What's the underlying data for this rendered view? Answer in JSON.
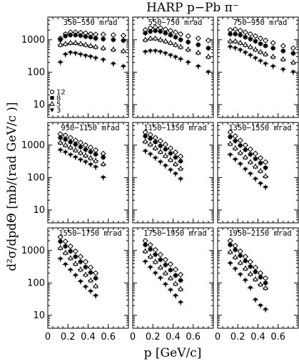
{
  "chart_data": {
    "type": "scatter",
    "title": "HARP p−Pb π⁻",
    "xlabel": "p [GeV/c]",
    "ylabel": "d²σ/dpdΘ [mb/(rad GeV/c )]",
    "xlim": [
      0,
      0.8
    ],
    "ylim": [
      4,
      5000
    ],
    "yscale": "log",
    "x_tick_labels": [
      "0",
      "0.2",
      "0.4",
      "0.6"
    ],
    "y_tick_labels": [
      "10",
      "100",
      "1000"
    ],
    "grid": "off",
    "legend": {
      "location": "lower-left of first panel",
      "entries": [
        {
          "label": "12",
          "marker": "open-circle"
        },
        {
          "label": "8",
          "marker": "filled-square"
        },
        {
          "label": "5",
          "marker": "open-triangle"
        },
        {
          "label": "3",
          "marker": "filled-triangle-down"
        }
      ]
    },
    "series_markers": {
      "12": "open-circle",
      "8": "filled-square",
      "5": "open-triangle",
      "3": "filled-triangle-down"
    },
    "panels": [
      {
        "label": "350−550 mrad",
        "series": [
          {
            "name": "12",
            "x": [
              0.125,
              0.175,
              0.225,
              0.275,
              0.325,
              0.375,
              0.425,
              0.475,
              0.55,
              0.65,
              0.75
            ],
            "y": [
              1100,
              1500,
              1700,
              1700,
              1650,
              1600,
              1500,
              1450,
              1450,
              1400,
              1350
            ]
          },
          {
            "name": "8",
            "x": [
              0.125,
              0.175,
              0.225,
              0.275,
              0.325,
              0.375,
              0.425,
              0.475,
              0.55,
              0.65,
              0.75
            ],
            "y": [
              1000,
              1300,
              1400,
              1400,
              1350,
              1250,
              1200,
              1100,
              1050,
              1000,
              950
            ]
          },
          {
            "name": "5",
            "x": [
              0.125,
              0.175,
              0.225,
              0.275,
              0.325,
              0.375,
              0.425,
              0.475,
              0.55,
              0.65,
              0.75
            ],
            "y": [
              700,
              750,
              800,
              800,
              750,
              700,
              650,
              600,
              550,
              500,
              450
            ]
          },
          {
            "name": "3",
            "x": [
              0.125,
              0.175,
              0.225,
              0.275,
              0.325,
              0.375,
              0.425,
              0.475,
              0.55,
              0.65,
              0.75
            ],
            "y": [
              200,
              350,
              400,
              380,
              350,
              320,
              300,
              270,
              240,
              180,
              150
            ]
          }
        ]
      },
      {
        "label": "550−750 mrad",
        "series": [
          {
            "name": "12",
            "x": [
              0.125,
              0.175,
              0.225,
              0.275,
              0.325,
              0.375,
              0.425,
              0.475,
              0.55,
              0.65,
              0.75
            ],
            "y": [
              2000,
              2300,
              2400,
              2300,
              2100,
              1900,
              1700,
              1500,
              1300,
              1100,
              950
            ]
          },
          {
            "name": "8",
            "x": [
              0.125,
              0.175,
              0.225,
              0.275,
              0.325,
              0.375,
              0.425,
              0.475,
              0.55,
              0.65,
              0.75
            ],
            "y": [
              1600,
              1800,
              1900,
              1800,
              1600,
              1400,
              1200,
              1000,
              850,
              700,
              550
            ]
          },
          {
            "name": "5",
            "x": [
              0.125,
              0.175,
              0.225,
              0.275,
              0.325,
              0.375,
              0.425,
              0.475,
              0.55,
              0.65,
              0.75
            ],
            "y": [
              1000,
              1100,
              1100,
              1000,
              900,
              800,
              700,
              600,
              500,
              400,
              300
            ]
          },
          {
            "name": "3",
            "x": [
              0.125,
              0.175,
              0.225,
              0.275,
              0.325,
              0.375,
              0.425,
              0.475,
              0.55,
              0.65,
              0.75
            ],
            "y": [
              420,
              450,
              450,
              420,
              380,
              330,
              290,
              250,
              200,
              150,
              100
            ]
          }
        ]
      },
      {
        "label": "750−950 mrad",
        "series": [
          {
            "name": "12",
            "x": [
              0.125,
              0.175,
              0.225,
              0.275,
              0.325,
              0.375,
              0.425,
              0.475,
              0.55,
              0.65,
              0.75
            ],
            "y": [
              2000,
              2100,
              1900,
              1700,
              1500,
              1300,
              1100,
              950,
              800,
              650,
              550
            ]
          },
          {
            "name": "8",
            "x": [
              0.125,
              0.175,
              0.225,
              0.275,
              0.325,
              0.375,
              0.425,
              0.475,
              0.55,
              0.65,
              0.75
            ],
            "y": [
              1500,
              1500,
              1400,
              1200,
              1050,
              900,
              750,
              650,
              550,
              450,
              380
            ]
          },
          {
            "name": "5",
            "x": [
              0.125,
              0.175,
              0.225,
              0.275,
              0.325,
              0.375,
              0.425,
              0.475,
              0.55,
              0.65,
              0.75
            ],
            "y": [
              900,
              900,
              800,
              700,
              600,
              500,
              420,
              360,
              300,
              250,
              200
            ]
          },
          {
            "name": "3",
            "x": [
              0.125,
              0.175,
              0.225,
              0.275,
              0.325,
              0.375,
              0.425,
              0.475,
              0.55,
              0.65,
              0.75
            ],
            "y": [
              600,
              550,
              480,
              400,
              330,
              270,
              220,
              180,
              150,
              120,
              100
            ]
          }
        ]
      },
      {
        "label": "950−1150 mrad",
        "series": [
          {
            "name": "12",
            "x": [
              0.125,
              0.175,
              0.225,
              0.275,
              0.325,
              0.375,
              0.425,
              0.475,
              0.55
            ],
            "y": [
              2200,
              2000,
              1700,
              1400,
              1200,
              1000,
              850,
              700,
              550
            ]
          },
          {
            "name": "8",
            "x": [
              0.125,
              0.175,
              0.225,
              0.275,
              0.325,
              0.375,
              0.425,
              0.475,
              0.55
            ],
            "y": [
              1700,
              1500,
              1250,
              1050,
              880,
              730,
              620,
              520,
              420
            ]
          },
          {
            "name": "5",
            "x": [
              0.125,
              0.175,
              0.225,
              0.275,
              0.325,
              0.375,
              0.425,
              0.475,
              0.55
            ],
            "y": [
              1200,
              1000,
              850,
              700,
              580,
              480,
              400,
              330,
              260
            ]
          },
          {
            "name": "3",
            "x": [
              0.125,
              0.175,
              0.225,
              0.275,
              0.325,
              0.375,
              0.425,
              0.475,
              0.55
            ],
            "y": [
              700,
              600,
              500,
              420,
              350,
              300,
              250,
              210,
              100
            ]
          }
        ]
      },
      {
        "label": "1150−1350 mrad",
        "series": [
          {
            "name": "12",
            "x": [
              0.125,
              0.175,
              0.225,
              0.275,
              0.325,
              0.375,
              0.425,
              0.475
            ],
            "y": [
              2500,
              2100,
              1700,
              1350,
              1050,
              800,
              600,
              450
            ]
          },
          {
            "name": "8",
            "x": [
              0.125,
              0.175,
              0.225,
              0.275,
              0.325,
              0.375,
              0.425,
              0.475
            ],
            "y": [
              1900,
              1600,
              1250,
              950,
              750,
              560,
              420,
              320
            ]
          },
          {
            "name": "5",
            "x": [
              0.125,
              0.175,
              0.225,
              0.275,
              0.325,
              0.375,
              0.425,
              0.475
            ],
            "y": [
              1300,
              1050,
              800,
              620,
              470,
              350,
              260,
              190
            ]
          },
          {
            "name": "3",
            "x": [
              0.125,
              0.175,
              0.225,
              0.275,
              0.325,
              0.375,
              0.425,
              0.475
            ],
            "y": [
              650,
              520,
              400,
              300,
              230,
              170,
              130,
              90
            ]
          }
        ]
      },
      {
        "label": "1350−1550 mrad",
        "series": [
          {
            "name": "12",
            "x": [
              0.125,
              0.175,
              0.225,
              0.275,
              0.325,
              0.375,
              0.425,
              0.475
            ],
            "y": [
              2500,
              1900,
              1400,
              1000,
              750,
              550,
              400,
              300
            ]
          },
          {
            "name": "8",
            "x": [
              0.125,
              0.175,
              0.225,
              0.275,
              0.325,
              0.375,
              0.425,
              0.475
            ],
            "y": [
              1800,
              1350,
              980,
              720,
              520,
              380,
              280,
              200
            ]
          },
          {
            "name": "5",
            "x": [
              0.125,
              0.175,
              0.225,
              0.275,
              0.325,
              0.375,
              0.425,
              0.475
            ],
            "y": [
              1100,
              800,
              580,
              420,
              300,
              220,
              160,
              110
            ]
          },
          {
            "name": "3",
            "x": [
              0.125,
              0.175,
              0.225,
              0.275,
              0.325,
              0.375,
              0.425,
              0.475
            ],
            "y": [
              500,
              360,
              260,
              180,
              130,
              90,
              65,
              50
            ]
          }
        ]
      },
      {
        "label": "1550−1750 mrad",
        "series": [
          {
            "name": "12",
            "x": [
              0.125,
              0.175,
              0.225,
              0.275,
              0.325,
              0.375,
              0.425,
              0.475
            ],
            "y": [
              2600,
              1900,
              1350,
              950,
              650,
              450,
              300,
              200
            ]
          },
          {
            "name": "8",
            "x": [
              0.125,
              0.175,
              0.225,
              0.275,
              0.325,
              0.375,
              0.425,
              0.475
            ],
            "y": [
              1900,
              1350,
              950,
              650,
              450,
              310,
              210,
              140
            ]
          },
          {
            "name": "5",
            "x": [
              0.125,
              0.175,
              0.225,
              0.275,
              0.325,
              0.375,
              0.425,
              0.475
            ],
            "y": [
              1200,
              850,
              580,
              390,
              260,
              180,
              120,
              80
            ]
          },
          {
            "name": "3",
            "x": [
              0.125,
              0.175,
              0.225,
              0.275,
              0.325,
              0.375,
              0.425,
              0.475
            ],
            "y": [
              550,
              370,
              250,
              170,
              110,
              75,
              55,
              40
            ]
          }
        ]
      },
      {
        "label": "1750−1950 mrad",
        "series": [
          {
            "name": "12",
            "x": [
              0.125,
              0.175,
              0.225,
              0.275,
              0.325,
              0.375,
              0.425,
              0.475
            ],
            "y": [
              2000,
              1500,
              1050,
              750,
              520,
              380,
              260,
              180
            ]
          },
          {
            "name": "8",
            "x": [
              0.125,
              0.175,
              0.225,
              0.275,
              0.325,
              0.375,
              0.425,
              0.475
            ],
            "y": [
              1500,
              1100,
              750,
              520,
              360,
              250,
              170,
              120
            ]
          },
          {
            "name": "5",
            "x": [
              0.125,
              0.175,
              0.225,
              0.275,
              0.325,
              0.375,
              0.425,
              0.475
            ],
            "y": [
              950,
              650,
              450,
              300,
              200,
              140,
              95,
              65
            ]
          },
          {
            "name": "3",
            "x": [
              0.125,
              0.175,
              0.225,
              0.275,
              0.325,
              0.375,
              0.425,
              0.475
            ],
            "y": [
              450,
              300,
              200,
              140,
              90,
              60,
              40,
              25
            ]
          }
        ]
      },
      {
        "label": "1950−2150 mrad",
        "series": [
          {
            "name": "12",
            "x": [
              0.125,
              0.175,
              0.225,
              0.275,
              0.325,
              0.375,
              0.425,
              0.475
            ],
            "y": [
              2000,
              1400,
              950,
              650,
              450,
              300,
              200,
              140
            ]
          },
          {
            "name": "8",
            "x": [
              0.125,
              0.175,
              0.225,
              0.275,
              0.325,
              0.375,
              0.425,
              0.475
            ],
            "y": [
              1500,
              1050,
              700,
              480,
              320,
              220,
              150,
              100
            ]
          },
          {
            "name": "5",
            "x": [
              0.125,
              0.175,
              0.225,
              0.275,
              0.325,
              0.375,
              0.425,
              0.475
            ],
            "y": [
              900,
              620,
              420,
              280,
              190,
              130,
              90,
              70
            ]
          },
          {
            "name": "3",
            "x": [
              0.125,
              0.175,
              0.225,
              0.275,
              0.325,
              0.375,
              0.425,
              0.475
            ],
            "y": [
              400,
              270,
              180,
              120,
              70,
              30,
              20,
              15
            ]
          }
        ]
      }
    ]
  }
}
